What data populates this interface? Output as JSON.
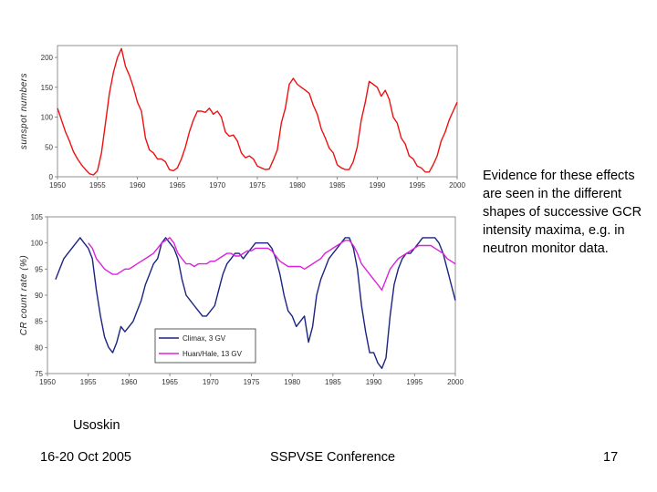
{
  "slide": {
    "side_text": "Evidence for these effects are seen in the different shapes of successive GCR intensity maxima, e.g. in neutron monitor data.",
    "credit": "Usoskin",
    "footer_date": "16-20 Oct 2005",
    "footer_conference": "SSPVSE Conference",
    "page_number": "17"
  },
  "chart_data": [
    {
      "type": "line",
      "ylabel": "sunspot numbers",
      "xlim": [
        1950,
        2000
      ],
      "ylim": [
        0,
        220
      ],
      "xticks": [
        "1950",
        "1955",
        "1960",
        "1965",
        "1970",
        "1975",
        "1980",
        "1985",
        "1990",
        "1995",
        "2000"
      ],
      "yticks": [
        "0",
        "50",
        "100",
        "150",
        "200"
      ],
      "series": [
        {
          "color": "#ee1111",
          "x": [
            1950.0,
            1950.5,
            1951.0,
            1951.5,
            1952.0,
            1952.5,
            1953.0,
            1953.5,
            1954.0,
            1954.5,
            1955.0,
            1955.5,
            1956.0,
            1956.5,
            1957.0,
            1957.5,
            1958.0,
            1958.5,
            1959.0,
            1959.5,
            1960.0,
            1960.5,
            1961.0,
            1961.5,
            1962.0,
            1962.5,
            1963.0,
            1963.5,
            1964.0,
            1964.5,
            1965.0,
            1965.5,
            1966.0,
            1966.5,
            1967.0,
            1967.5,
            1968.0,
            1968.5,
            1969.0,
            1969.5,
            1970.0,
            1970.5,
            1971.0,
            1971.5,
            1972.0,
            1972.5,
            1973.0,
            1973.5,
            1974.0,
            1974.5,
            1975.0,
            1975.5,
            1976.0,
            1976.5,
            1977.0,
            1977.5,
            1978.0,
            1978.5,
            1979.0,
            1979.5,
            1980.0,
            1980.5,
            1981.0,
            1981.5,
            1982.0,
            1982.5,
            1983.0,
            1983.5,
            1984.0,
            1984.5,
            1985.0,
            1985.5,
            1986.0,
            1986.5,
            1987.0,
            1987.5,
            1988.0,
            1988.5,
            1989.0,
            1989.5,
            1990.0,
            1990.5,
            1991.0,
            1991.5,
            1992.0,
            1992.5,
            1993.0,
            1993.5,
            1994.0,
            1994.5,
            1995.0,
            1995.5,
            1996.0,
            1996.5,
            1997.0,
            1997.5,
            1998.0,
            1998.5,
            1999.0,
            1999.5,
            2000.0
          ],
          "values": [
            115,
            95,
            75,
            60,
            42,
            30,
            20,
            12,
            5,
            3,
            10,
            40,
            90,
            140,
            175,
            200,
            215,
            185,
            170,
            150,
            125,
            110,
            65,
            45,
            40,
            30,
            30,
            25,
            12,
            10,
            15,
            30,
            50,
            75,
            95,
            110,
            110,
            108,
            115,
            105,
            110,
            100,
            75,
            68,
            70,
            60,
            40,
            32,
            35,
            30,
            18,
            15,
            12,
            13,
            28,
            45,
            90,
            115,
            155,
            165,
            155,
            150,
            145,
            140,
            120,
            105,
            80,
            65,
            48,
            40,
            20,
            15,
            12,
            12,
            25,
            50,
            95,
            125,
            160,
            155,
            150,
            135,
            145,
            130,
            100,
            90,
            65,
            55,
            35,
            30,
            18,
            15,
            8,
            8,
            20,
            35,
            60,
            75,
            95,
            110,
            125
          ]
        }
      ]
    },
    {
      "type": "line",
      "ylabel": "CR count rate (%)",
      "xlim": [
        1950,
        2000
      ],
      "ylim": [
        75,
        105
      ],
      "xticks": [
        "1950",
        "1955",
        "1960",
        "1965",
        "1970",
        "1975",
        "1980",
        "1985",
        "1990",
        "1995",
        "2000"
      ],
      "yticks": [
        "75",
        "80",
        "85",
        "90",
        "95",
        "100",
        "105"
      ],
      "legend": "bottom-center",
      "series": [
        {
          "name": "Climax, 3 GV",
          "color": "#1a2480",
          "x": [
            1951.0,
            1951.5,
            1952.0,
            1952.5,
            1953.0,
            1953.5,
            1954.0,
            1954.5,
            1955.0,
            1955.5,
            1956.0,
            1956.5,
            1957.0,
            1957.5,
            1958.0,
            1958.5,
            1959.0,
            1959.5,
            1960.0,
            1960.5,
            1961.0,
            1961.5,
            1962.0,
            1962.5,
            1963.0,
            1963.5,
            1964.0,
            1964.5,
            1965.0,
            1965.5,
            1966.0,
            1966.5,
            1967.0,
            1967.5,
            1968.0,
            1968.5,
            1969.0,
            1969.5,
            1970.0,
            1970.5,
            1971.0,
            1971.5,
            1972.0,
            1972.5,
            1973.0,
            1973.5,
            1974.0,
            1974.5,
            1975.0,
            1975.5,
            1976.0,
            1976.5,
            1977.0,
            1977.5,
            1978.0,
            1978.5,
            1979.0,
            1979.5,
            1980.0,
            1980.5,
            1981.0,
            1981.5,
            1982.0,
            1982.5,
            1983.0,
            1983.5,
            1984.0,
            1984.5,
            1985.0,
            1985.5,
            1986.0,
            1986.5,
            1987.0,
            1987.5,
            1988.0,
            1988.5,
            1989.0,
            1989.5,
            1990.0,
            1990.5,
            1991.0,
            1991.5,
            1992.0,
            1992.5,
            1993.0,
            1993.5,
            1994.0,
            1994.5,
            1995.0,
            1995.5,
            1996.0,
            1996.5,
            1997.0,
            1997.5,
            1998.0,
            1998.5,
            1999.0,
            1999.5,
            2000.0
          ],
          "values": [
            93,
            95,
            97,
            98,
            99,
            100,
            101,
            100,
            99,
            97,
            91,
            86,
            82,
            80,
            79,
            81,
            84,
            83,
            84,
            85,
            87,
            89,
            92,
            94,
            96,
            97,
            100,
            101,
            100,
            99,
            97,
            93,
            90,
            89,
            88,
            87,
            86,
            86,
            87,
            88,
            91,
            94,
            96,
            97,
            98,
            98,
            97,
            98,
            99,
            100,
            100,
            100,
            100,
            99,
            97,
            94,
            90,
            87,
            86,
            84,
            85,
            86,
            81,
            84,
            90,
            93,
            95,
            97,
            98,
            99,
            100,
            101,
            101,
            99,
            95,
            88,
            83,
            79,
            79,
            77,
            76,
            78,
            86,
            92,
            95,
            97,
            98,
            98,
            99,
            100,
            101,
            101,
            101,
            101,
            100,
            98,
            95,
            92,
            89
          ]
        },
        {
          "name": "Huan/Hale, 13 GV",
          "color": "#dd22dd",
          "x": [
            1955.0,
            1955.5,
            1956.0,
            1956.5,
            1957.0,
            1957.5,
            1958.0,
            1958.5,
            1959.0,
            1959.5,
            1960.0,
            1960.5,
            1961.0,
            1961.5,
            1962.0,
            1962.5,
            1963.0,
            1963.5,
            1964.0,
            1964.5,
            1965.0,
            1965.5,
            1966.0,
            1966.5,
            1967.0,
            1967.5,
            1968.0,
            1968.5,
            1969.0,
            1969.5,
            1970.0,
            1970.5,
            1971.0,
            1971.5,
            1972.0,
            1972.5,
            1973.0,
            1973.5,
            1974.0,
            1974.5,
            1975.0,
            1975.5,
            1976.0,
            1976.5,
            1977.0,
            1977.5,
            1978.0,
            1978.5,
            1979.0,
            1979.5,
            1980.0,
            1980.5,
            1981.0,
            1981.5,
            1982.0,
            1982.5,
            1983.0,
            1983.5,
            1984.0,
            1984.5,
            1985.0,
            1985.5,
            1986.0,
            1986.5,
            1987.0,
            1987.5,
            1988.0,
            1988.5,
            1989.0,
            1989.5,
            1990.0,
            1990.5,
            1991.0,
            1991.5,
            1992.0,
            1992.5,
            1993.0,
            1993.5,
            1994.0,
            1994.5,
            1995.0,
            1995.5,
            1996.0,
            1996.5,
            1997.0,
            1997.5,
            1998.0,
            1998.5,
            1999.0,
            1999.5,
            2000.0
          ],
          "values": [
            100,
            99,
            97,
            96,
            95,
            94.5,
            94,
            94,
            94.5,
            95,
            95,
            95.5,
            96,
            96.5,
            97,
            97.5,
            98,
            99,
            100,
            100.5,
            101,
            100,
            98,
            97,
            96,
            96,
            95.5,
            96,
            96,
            96,
            96.5,
            96.5,
            97,
            97.5,
            98,
            98,
            97.5,
            97.5,
            98,
            98.5,
            98.5,
            99,
            99,
            99,
            99,
            98.5,
            97.5,
            96.5,
            96,
            95.5,
            95.5,
            95.5,
            95.5,
            95,
            95.5,
            96,
            96.5,
            97,
            98,
            98.5,
            99,
            99.5,
            100,
            100.5,
            100.5,
            99.5,
            98,
            96,
            95,
            94,
            93,
            92,
            91,
            93,
            95,
            96,
            97,
            97.5,
            98,
            98.5,
            99,
            99.5,
            99.5,
            99.5,
            99.5,
            99,
            98.5,
            98,
            97,
            96.5,
            96
          ]
        }
      ]
    }
  ]
}
